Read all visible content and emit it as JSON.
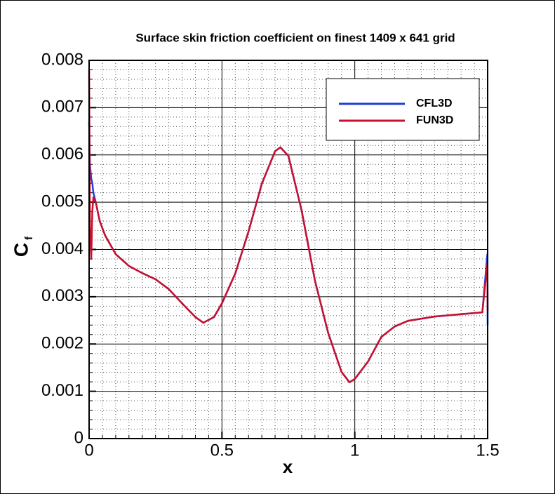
{
  "chart_data": {
    "type": "line",
    "title": "Surface skin friction coefficient on finest 1409 x 641 grid",
    "xlabel": "x",
    "ylabel": "C",
    "ylabel_sub": "f",
    "x": [
      0,
      0.003,
      0.008,
      0.012,
      0.016,
      0.025,
      0.04,
      0.06,
      0.1,
      0.15,
      0.2,
      0.25,
      0.3,
      0.35,
      0.4,
      0.43,
      0.47,
      0.5,
      0.55,
      0.6,
      0.65,
      0.7,
      0.72,
      0.75,
      0.8,
      0.85,
      0.9,
      0.95,
      0.98,
      1.0,
      1.05,
      1.1,
      1.15,
      1.2,
      1.3,
      1.4,
      1.48,
      1.499,
      1.5
    ],
    "series": [
      {
        "name": "CFL3D",
        "color": "#1f3fd8",
        "values": [
          0.0067,
          0.0058,
          0.0055,
          0.0054,
          0.0052,
          0.005,
          0.0046,
          0.0043,
          0.0039,
          0.00365,
          0.0035,
          0.00337,
          0.00316,
          0.00286,
          0.00257,
          0.00245,
          0.00257,
          0.00286,
          0.00349,
          0.00438,
          0.00539,
          0.00608,
          0.00616,
          0.00598,
          0.00482,
          0.00334,
          0.00223,
          0.00141,
          0.00119,
          0.00126,
          0.00163,
          0.00215,
          0.00237,
          0.00249,
          0.00258,
          0.00263,
          0.00267,
          0.0039,
          0.0024
        ]
      },
      {
        "name": "FUN3D",
        "color": "#c8102e",
        "values": [
          0.0078,
          0.0045,
          0.0038,
          0.0048,
          0.0051,
          0.005,
          0.0046,
          0.0043,
          0.0039,
          0.00365,
          0.0035,
          0.00337,
          0.00316,
          0.00286,
          0.00257,
          0.00245,
          0.00257,
          0.00286,
          0.00349,
          0.00438,
          0.00539,
          0.00608,
          0.00616,
          0.00598,
          0.00482,
          0.00334,
          0.00223,
          0.00141,
          0.00119,
          0.00126,
          0.00163,
          0.00215,
          0.00237,
          0.00249,
          0.00258,
          0.00263,
          0.00267,
          0.0037,
          0.0027
        ]
      }
    ],
    "xlim": [
      0,
      1.5
    ],
    "xticks": [
      0,
      0.5,
      1,
      1.5
    ],
    "ylim": [
      0,
      0.008
    ],
    "yticks": [
      0,
      0.001,
      0.002,
      0.003,
      0.004,
      0.005,
      0.006,
      0.007,
      0.008
    ],
    "grid": true,
    "minor_grid": true,
    "legend": "upper right"
  }
}
